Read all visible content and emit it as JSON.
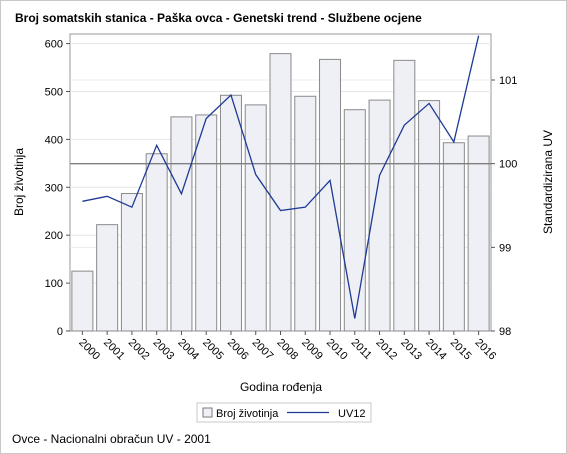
{
  "chart_data": {
    "type": "bar",
    "title": "Broj somatskih stanica - Paška ovca - Genetski trend - Službene ocjene",
    "xlabel": "Godina rođenja",
    "ylabel": "Broj životinja",
    "y2label": "Standardizirana UV",
    "categories": [
      "2000",
      "2001",
      "2002",
      "2003",
      "2004",
      "2005",
      "2006",
      "2007",
      "2008",
      "2009",
      "2010",
      "2011",
      "2012",
      "2013",
      "2014",
      "2015",
      "2016"
    ],
    "series": [
      {
        "name": "Broj životinja",
        "type": "bar",
        "axis": "left",
        "color": "#eef0f6",
        "values": [
          125,
          222,
          287,
          370,
          447,
          451,
          492,
          472,
          579,
          490,
          567,
          462,
          482,
          565,
          481,
          393,
          407
        ]
      },
      {
        "name": "UV12",
        "type": "line",
        "axis": "right",
        "color": "#1f3a93",
        "values": [
          99.55,
          99.61,
          99.48,
          100.22,
          99.64,
          100.54,
          100.82,
          99.87,
          99.44,
          99.48,
          99.8,
          98.15,
          99.86,
          100.46,
          100.72,
          100.26,
          101.53
        ]
      }
    ],
    "ylim": [
      0,
      620
    ],
    "yticks": [
      0,
      100,
      200,
      300,
      400,
      500,
      600
    ],
    "y2lim": [
      98,
      101.55
    ],
    "y2ticks": [
      98,
      99,
      100,
      101
    ],
    "reference_line_y2": 100,
    "legend_position": "bottom-center",
    "footnote": "Ovce - Nacionalni obračun UV - 2001"
  }
}
